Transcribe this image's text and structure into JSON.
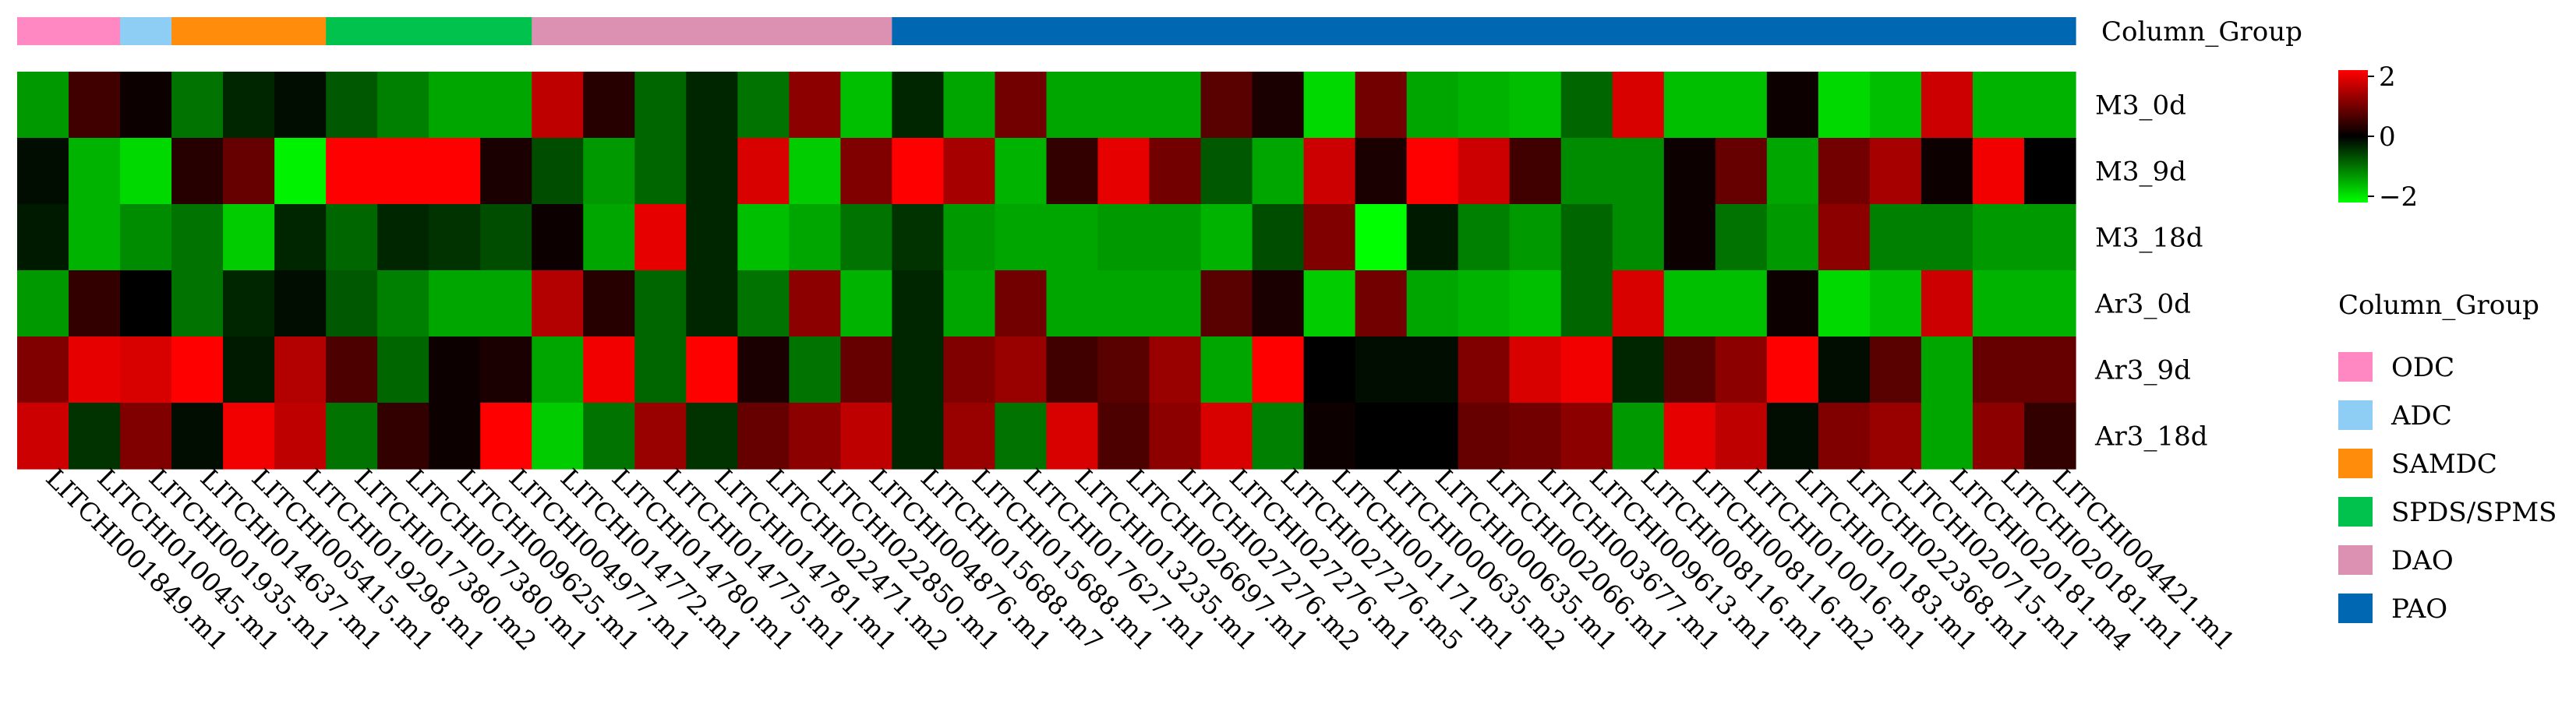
{
  "chart_data": {
    "type": "heatmap",
    "annotation_title": "Column_Group",
    "legend_title": "Column_Group",
    "color_scale": {
      "min": -2,
      "mid": 0,
      "max": 2,
      "tick_labels": [
        "2",
        "0",
        "−2"
      ],
      "colors": {
        "low": "#00ff00",
        "mid": "#000000",
        "high": "#ff0000"
      }
    },
    "groups": [
      {
        "name": "ODC",
        "color": "#ff88c2",
        "count": 2
      },
      {
        "name": "ADC",
        "color": "#8ecdf4",
        "count": 1
      },
      {
        "name": "SAMDC",
        "color": "#ff8c0a",
        "count": 3
      },
      {
        "name": "SPDS/SPMS",
        "color": "#00c24c",
        "count": 4
      },
      {
        "name": "DAO",
        "color": "#dd91b2",
        "count": 7
      },
      {
        "name": "PAO",
        "color": "#0068b2",
        "count": 23
      }
    ],
    "rows": [
      "M3_0d",
      "M3_9d",
      "M3_18d",
      "Ar3_0d",
      "Ar3_9d",
      "Ar3_18d"
    ],
    "columns": [
      "LITCHI001849.m1",
      "LITCHI010045.m1",
      "LITCHI001935.m1",
      "LITCHI014637.m1",
      "LITCHI005415.m1",
      "LITCHI019298.m1",
      "LITCHI017380.m2",
      "LITCHI017380.m1",
      "LITCHI009625.m1",
      "LITCHI004977.m1",
      "LITCHI014772.m1",
      "LITCHI014780.m1",
      "LITCHI014775.m1",
      "LITCHI014781.m1",
      "LITCHI022471.m2",
      "LITCHI022850.m1",
      "LITCHI004876.m1",
      "LITCHI015688.m7",
      "LITCHI015688.m1",
      "LITCHI017627.m1",
      "LITCHI013235.m1",
      "LITCHI026697.m1",
      "LITCHI027276.m2",
      "LITCHI027276.m1",
      "LITCHI027276.m5",
      "LITCHI001171.m1",
      "LITCHI000635.m2",
      "LITCHI000635.m1",
      "LITCHI002066.m1",
      "LITCHI003677.m1",
      "LITCHI009613.m1",
      "LITCHI008116.m1",
      "LITCHI008116.m2",
      "LITCHI010016.m1",
      "LITCHI010183.m1",
      "LITCHI022368.m1",
      "LITCHI020715.m1",
      "LITCHI020181.m4",
      "LITCHI020181.m1",
      "LITCHI004421.m1"
    ],
    "values": [
      [
        -1.2,
        0.5,
        0.1,
        -0.9,
        -0.3,
        -0.1,
        -0.7,
        -1.0,
        -1.3,
        -1.3,
        1.5,
        0.3,
        -0.8,
        -0.3,
        -0.9,
        1.1,
        -1.5,
        -0.3,
        -1.3,
        0.9,
        -1.3,
        -1.3,
        -1.3,
        0.7,
        0.2,
        -1.7,
        0.9,
        -1.3,
        -1.4,
        -1.5,
        -0.8,
        1.7,
        -1.5,
        -1.5,
        0.1,
        -1.7,
        -1.5,
        1.6,
        -1.4,
        -1.4
      ],
      [
        -0.1,
        -1.4,
        -1.7,
        0.3,
        0.8,
        -1.9,
        2.0,
        2.0,
        2.0,
        0.2,
        -0.6,
        -1.2,
        -0.8,
        -0.3,
        1.7,
        -1.6,
        1.0,
        2.0,
        1.3,
        -1.4,
        0.4,
        1.8,
        0.9,
        -0.7,
        -1.3,
        1.6,
        0.2,
        2.0,
        1.6,
        0.5,
        -1.1,
        -1.1,
        0.1,
        0.8,
        -1.3,
        0.9,
        1.3,
        0.1,
        1.9,
        0.0
      ],
      [
        -0.2,
        -1.4,
        -1.1,
        -0.9,
        -1.6,
        -0.3,
        -0.8,
        -0.3,
        -0.4,
        -0.6,
        0.1,
        -1.3,
        1.8,
        -0.3,
        -1.5,
        -1.3,
        -0.9,
        -0.4,
        -1.2,
        -1.3,
        -1.3,
        -1.2,
        -1.2,
        -1.4,
        -0.6,
        1.0,
        -2.0,
        -0.2,
        -1.0,
        -1.2,
        -0.8,
        -1.1,
        0.1,
        -0.9,
        -1.2,
        1.1,
        -1.0,
        -1.0,
        -1.2,
        -1.2
      ],
      [
        -1.2,
        0.4,
        0.0,
        -0.9,
        -0.3,
        -0.1,
        -0.7,
        -1.0,
        -1.3,
        -1.3,
        1.4,
        0.3,
        -0.8,
        -0.3,
        -0.9,
        1.1,
        -1.4,
        -0.3,
        -1.3,
        0.9,
        -1.3,
        -1.3,
        -1.3,
        0.7,
        0.2,
        -1.6,
        0.9,
        -1.3,
        -1.4,
        -1.5,
        -0.8,
        1.7,
        -1.5,
        -1.5,
        0.1,
        -1.7,
        -1.5,
        1.6,
        -1.4,
        -1.4
      ],
      [
        1.0,
        1.8,
        1.7,
        2.0,
        -0.2,
        1.4,
        0.6,
        -0.8,
        0.1,
        0.2,
        -1.3,
        1.9,
        -0.8,
        2.0,
        0.2,
        -0.9,
        0.8,
        -0.3,
        1.0,
        1.2,
        0.5,
        0.7,
        1.2,
        -1.3,
        2.0,
        0.0,
        -0.1,
        -0.1,
        1.0,
        1.7,
        1.9,
        -0.3,
        0.7,
        1.1,
        2.0,
        -0.1,
        0.7,
        -1.3,
        0.8,
        0.8
      ],
      [
        1.6,
        -0.4,
        1.0,
        -0.1,
        1.9,
        1.5,
        -0.9,
        0.4,
        0.1,
        2.0,
        -1.6,
        -0.9,
        1.2,
        -0.4,
        0.8,
        1.1,
        1.5,
        -0.3,
        1.2,
        -0.9,
        1.7,
        0.6,
        1.1,
        1.7,
        -1.0,
        0.1,
        0.0,
        0.0,
        0.8,
        0.9,
        1.1,
        -1.2,
        1.8,
        1.5,
        -0.1,
        1.0,
        1.2,
        -1.3,
        1.1,
        0.4
      ]
    ]
  }
}
